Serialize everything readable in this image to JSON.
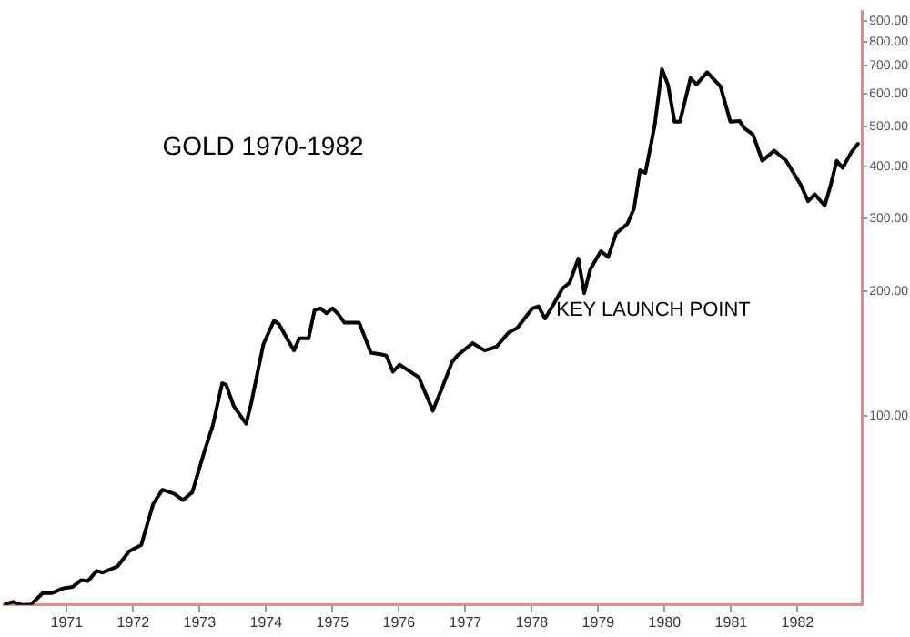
{
  "chart_data": {
    "type": "line",
    "title": "GOLD 1970-1982",
    "x": [
      1970.08,
      1970.19,
      1970.33,
      1970.46,
      1970.64,
      1970.78,
      1970.95,
      1971.09,
      1971.22,
      1971.32,
      1971.45,
      1971.54,
      1971.76,
      1971.94,
      1972.12,
      1972.3,
      1972.44,
      1972.62,
      1972.75,
      1972.89,
      1973.07,
      1973.2,
      1973.34,
      1973.4,
      1973.51,
      1973.7,
      1973.78,
      1973.96,
      1974.12,
      1974.19,
      1974.42,
      1974.5,
      1974.64,
      1974.73,
      1974.82,
      1974.91,
      1975.0,
      1975.09,
      1975.18,
      1975.4,
      1975.58,
      1975.72,
      1975.81,
      1975.91,
      1976.01,
      1976.17,
      1976.3,
      1976.51,
      1976.66,
      1976.8,
      1976.88,
      1977.11,
      1977.29,
      1977.47,
      1977.65,
      1977.78,
      1978.01,
      1978.1,
      1978.2,
      1978.32,
      1978.46,
      1978.57,
      1978.7,
      1978.79,
      1978.88,
      1979.04,
      1979.15,
      1979.27,
      1979.44,
      1979.54,
      1979.63,
      1979.71,
      1979.85,
      1979.96,
      1980.05,
      1980.15,
      1980.23,
      1980.39,
      1980.48,
      1980.64,
      1980.84,
      1980.99,
      1981.13,
      1981.2,
      1981.33,
      1981.47,
      1981.65,
      1981.83,
      1982.05,
      1982.16,
      1982.26,
      1982.41,
      1982.5,
      1982.59,
      1982.68,
      1982.81,
      1982.91
    ],
    "series": [
      {
        "color": "#000000",
        "values": [
          35.2,
          35.6,
          35,
          35.1,
          37.4,
          37.4,
          38.4,
          38.7,
          40.2,
          40,
          42.3,
          41.9,
          43.3,
          47.2,
          48.8,
          61.3,
          66.4,
          64.9,
          62.7,
          65.5,
          81.9,
          95.1,
          120,
          119,
          106,
          95.8,
          108,
          149,
          170,
          167,
          144,
          154,
          154,
          180,
          182,
          177,
          182,
          176,
          168,
          168,
          142,
          141,
          140,
          128,
          133,
          128,
          124,
          103,
          118,
          135,
          140,
          150,
          144,
          147,
          159,
          163,
          182,
          184,
          172,
          185,
          203,
          210,
          240,
          198,
          226,
          250,
          242,
          276,
          291,
          317,
          392,
          386,
          503,
          687,
          631,
          513,
          513,
          654,
          631,
          676,
          625,
          513,
          515,
          495,
          478,
          413,
          437,
          413,
          361,
          330,
          343,
          322,
          361,
          413,
          397,
          433,
          454
        ]
      }
    ],
    "xlim": [
      1970.05,
      1982.97
    ],
    "xticks": [
      1971,
      1972,
      1973,
      1974,
      1975,
      1976,
      1977,
      1978,
      1979,
      1980,
      1981,
      1982
    ],
    "ylim": [
      35,
      950
    ],
    "log": true,
    "yticks": [
      {
        "value": 100,
        "label": "100.00"
      },
      {
        "value": 200,
        "label": "200.00"
      },
      {
        "value": 300,
        "label": "300.00"
      },
      {
        "value": 400,
        "label": "400.00"
      },
      {
        "value": 500,
        "label": "500.00"
      },
      {
        "value": 600,
        "label": "600.00"
      },
      {
        "value": 700,
        "label": "700.00"
      },
      {
        "value": 800,
        "label": "800.00"
      },
      {
        "value": 900,
        "label": "900.00"
      }
    ],
    "annotations": [
      {
        "text": "KEY LAUNCH POINT",
        "x": 1978.79,
        "y": 198
      }
    ],
    "grid": false,
    "legend": false,
    "marker": "none",
    "line_style": "solid"
  }
}
